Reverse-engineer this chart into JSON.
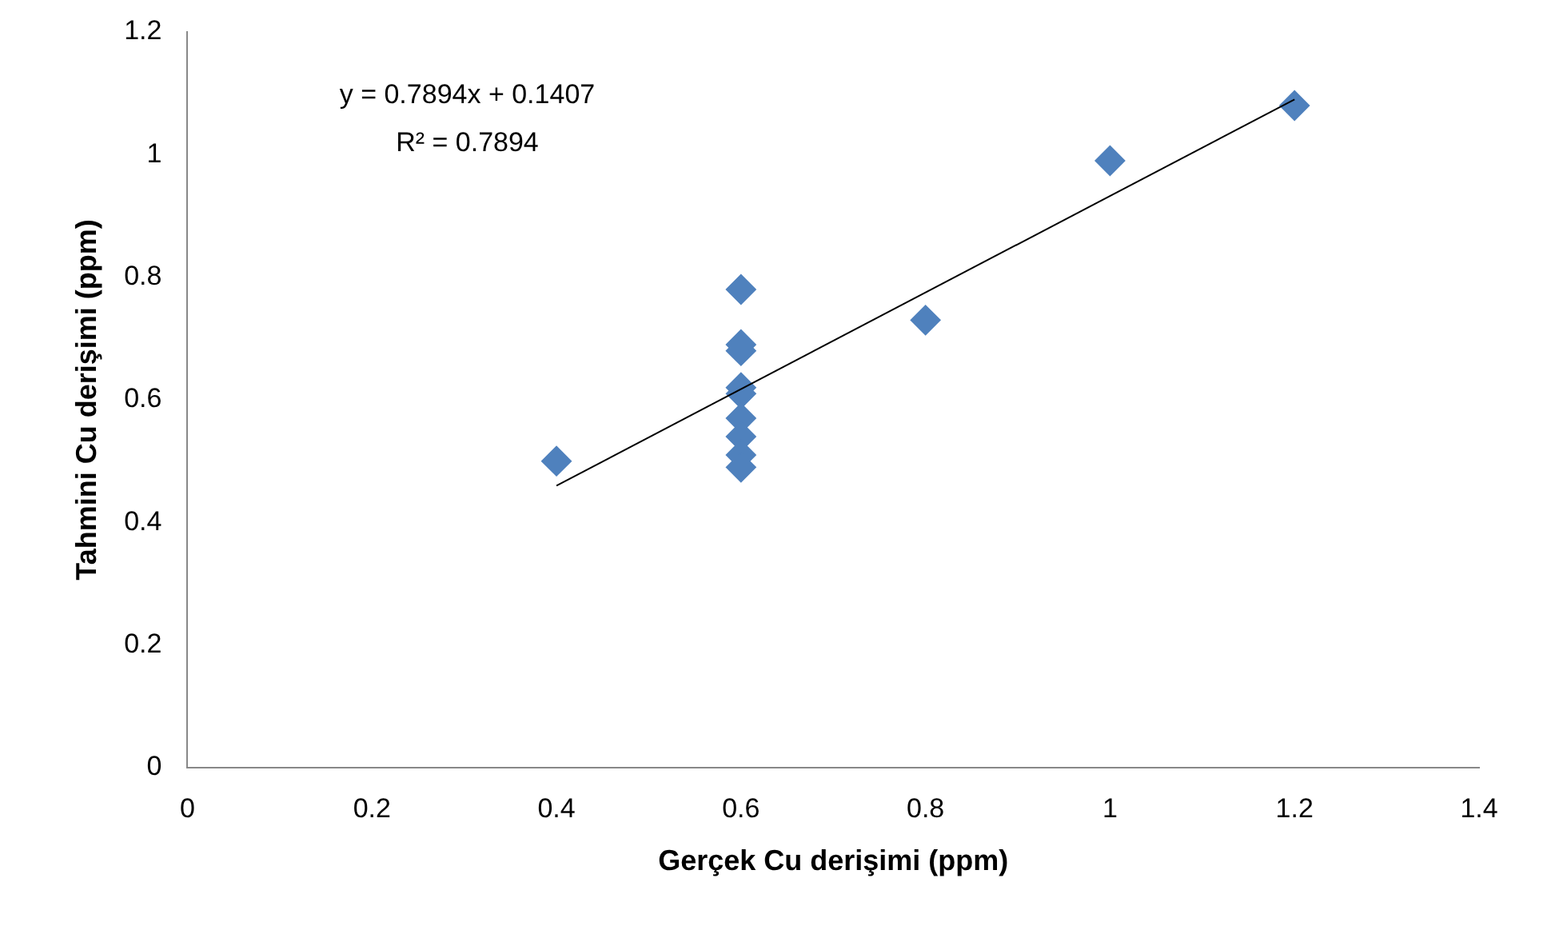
{
  "chart_data": {
    "type": "scatter",
    "xlabel": "Gerçek Cu derişimi (ppm)",
    "ylabel": "Tahmini Cu derişimi (ppm)",
    "series": [
      {
        "color": "#4f81bd",
        "marker": "diamond",
        "x": [
          0.4,
          0.6,
          0.6,
          0.6,
          0.6,
          0.6,
          0.6,
          0.6,
          0.6,
          0.6,
          0.8,
          1.0,
          1.2
        ],
        "values": [
          0.5,
          0.78,
          0.69,
          0.68,
          0.62,
          0.61,
          0.57,
          0.54,
          0.51,
          0.49,
          0.73,
          0.99,
          1.08
        ]
      },
      {
        "type": "line",
        "color": "#000000",
        "marker": "none",
        "x": [
          0.4,
          1.2
        ],
        "values": [
          0.46,
          1.09
        ]
      }
    ],
    "annotations": [
      "y = 0.7894x + 0.1407",
      "R² = 0.7894"
    ],
    "xlim": [
      0,
      1.4
    ],
    "xticks": [
      0,
      0.2,
      0.4,
      0.6,
      0.8,
      1,
      1.2,
      1.4
    ],
    "ylim": [
      0,
      1.2
    ],
    "yticks": [
      0,
      0.2,
      0.4,
      0.6,
      0.8,
      1,
      1.2
    ],
    "grid": false,
    "legend": false
  }
}
